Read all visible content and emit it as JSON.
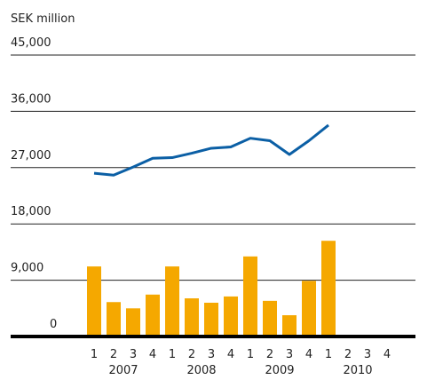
{
  "chart_data": {
    "type": "bar_line",
    "y_label": "SEK million",
    "categories": [
      "1",
      "2",
      "3",
      "4",
      "1",
      "2",
      "3",
      "4",
      "1",
      "2",
      "3",
      "4",
      "1",
      "2",
      "3",
      "4"
    ],
    "groups": [
      "2007",
      "2008",
      "2009",
      "2010"
    ],
    "series": [
      {
        "type": "bar",
        "color": "#f5a800",
        "values": [
          11200,
          5500,
          4500,
          6700,
          11200,
          6100,
          5400,
          6400,
          12800,
          5700,
          3400,
          8900,
          15300,
          null,
          null,
          null
        ]
      },
      {
        "type": "line",
        "color": "#0b5fa5",
        "values": [
          26100,
          25800,
          27100,
          28500,
          28600,
          29300,
          30100,
          30300,
          31700,
          31300,
          29100,
          31300,
          33800,
          null,
          null,
          null
        ]
      }
    ],
    "ylim": [
      0,
      45000
    ],
    "yticks": [
      0,
      {
        "value": 9000,
        "label": "9,000"
      },
      {
        "value": 18000,
        "label": "18,000"
      },
      {
        "value": 27000,
        "label": "27,000"
      },
      {
        "value": 36000,
        "label": "36,000"
      },
      {
        "value": 45000,
        "label": "45,000"
      }
    ],
    "grid": true
  }
}
